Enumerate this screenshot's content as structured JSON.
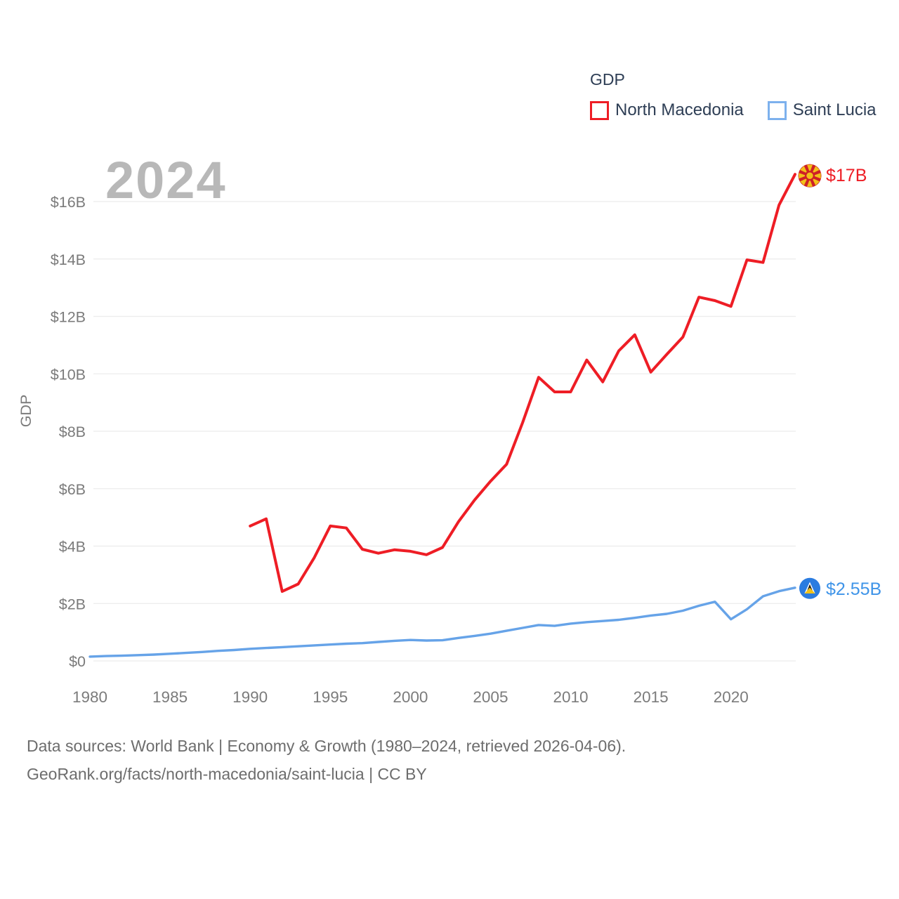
{
  "watermark_year": "2024",
  "legend": {
    "title": "GDP",
    "items": [
      {
        "label": "North Macedonia",
        "swatch_color": "#ee1d25"
      },
      {
        "label": "Saint Lucia",
        "swatch_color": "#7db1ed"
      }
    ]
  },
  "footer": {
    "line1": "Data sources: World Bank | Economy & Growth (1980–2024, retrieved 2026-04-06).",
    "line2": "GeoRank.org/facts/north-macedonia/saint-lucia | CC BY"
  },
  "chart_data": {
    "type": "line",
    "title": "GDP",
    "xlabel": "",
    "ylabel": "GDP",
    "xlim": [
      1980,
      2024
    ],
    "ylim": [
      0,
      17.4
    ],
    "grid": true,
    "legend_position": "top-right",
    "x_ticks": [
      1980,
      1985,
      1990,
      1995,
      2000,
      2005,
      2010,
      2015,
      2020
    ],
    "y_tick_labels": [
      "$0",
      "$2B",
      "$4B",
      "$6B",
      "$8B",
      "$10B",
      "$12B",
      "$14B",
      "$16B"
    ],
    "y_tick_values": [
      0,
      2,
      4,
      6,
      8,
      10,
      12,
      14,
      16
    ],
    "y_unit": "billion USD",
    "series": [
      {
        "name": "North Macedonia",
        "color": "#ee1d25",
        "label_color": "#ee1d25",
        "end_label": "$17B",
        "flag": "north-macedonia",
        "years": [
          1990,
          1991,
          1992,
          1993,
          1994,
          1995,
          1996,
          1997,
          1998,
          1999,
          2000,
          2001,
          2002,
          2003,
          2004,
          2005,
          2006,
          2007,
          2008,
          2009,
          2010,
          2011,
          2012,
          2013,
          2014,
          2015,
          2016,
          2017,
          2018,
          2019,
          2020,
          2021,
          2022,
          2023,
          2024
        ],
        "values": [
          4.7,
          4.95,
          2.42,
          2.68,
          3.6,
          4.7,
          4.63,
          3.89,
          3.75,
          3.87,
          3.82,
          3.7,
          3.95,
          4.85,
          5.6,
          6.26,
          6.85,
          8.3,
          9.88,
          9.37,
          9.37,
          10.48,
          9.72,
          10.8,
          11.36,
          10.06,
          10.68,
          11.28,
          12.67,
          12.55,
          12.35,
          13.97,
          13.88,
          15.88,
          16.95
        ]
      },
      {
        "name": "Saint Lucia",
        "color": "#66a3e8",
        "label_color": "#3f94e8",
        "end_label": "$2.55B",
        "flag": "saint-lucia",
        "years": [
          1980,
          1981,
          1982,
          1983,
          1984,
          1985,
          1986,
          1987,
          1988,
          1989,
          1990,
          1991,
          1992,
          1993,
          1994,
          1995,
          1996,
          1997,
          1998,
          1999,
          2000,
          2001,
          2002,
          2003,
          2004,
          2005,
          2006,
          2007,
          2008,
          2009,
          2010,
          2011,
          2012,
          2013,
          2014,
          2015,
          2016,
          2017,
          2018,
          2019,
          2020,
          2021,
          2022,
          2023,
          2024
        ],
        "values": [
          0.15,
          0.17,
          0.18,
          0.2,
          0.22,
          0.25,
          0.28,
          0.31,
          0.35,
          0.38,
          0.42,
          0.45,
          0.48,
          0.51,
          0.54,
          0.57,
          0.6,
          0.62,
          0.66,
          0.7,
          0.73,
          0.71,
          0.72,
          0.8,
          0.87,
          0.95,
          1.05,
          1.15,
          1.25,
          1.22,
          1.3,
          1.35,
          1.39,
          1.43,
          1.5,
          1.58,
          1.64,
          1.75,
          1.92,
          2.06,
          1.45,
          1.8,
          2.25,
          2.43,
          2.55
        ]
      }
    ],
    "flag_colors": {
      "north_macedonia_red": "#ce2027",
      "north_macedonia_yellow": "#f2c118",
      "saint_lucia_blue": "#2b7ce0",
      "saint_lucia_black": "#1a1a1a",
      "saint_lucia_yellow": "#f2c118",
      "saint_lucia_white": "#ffffff"
    }
  }
}
